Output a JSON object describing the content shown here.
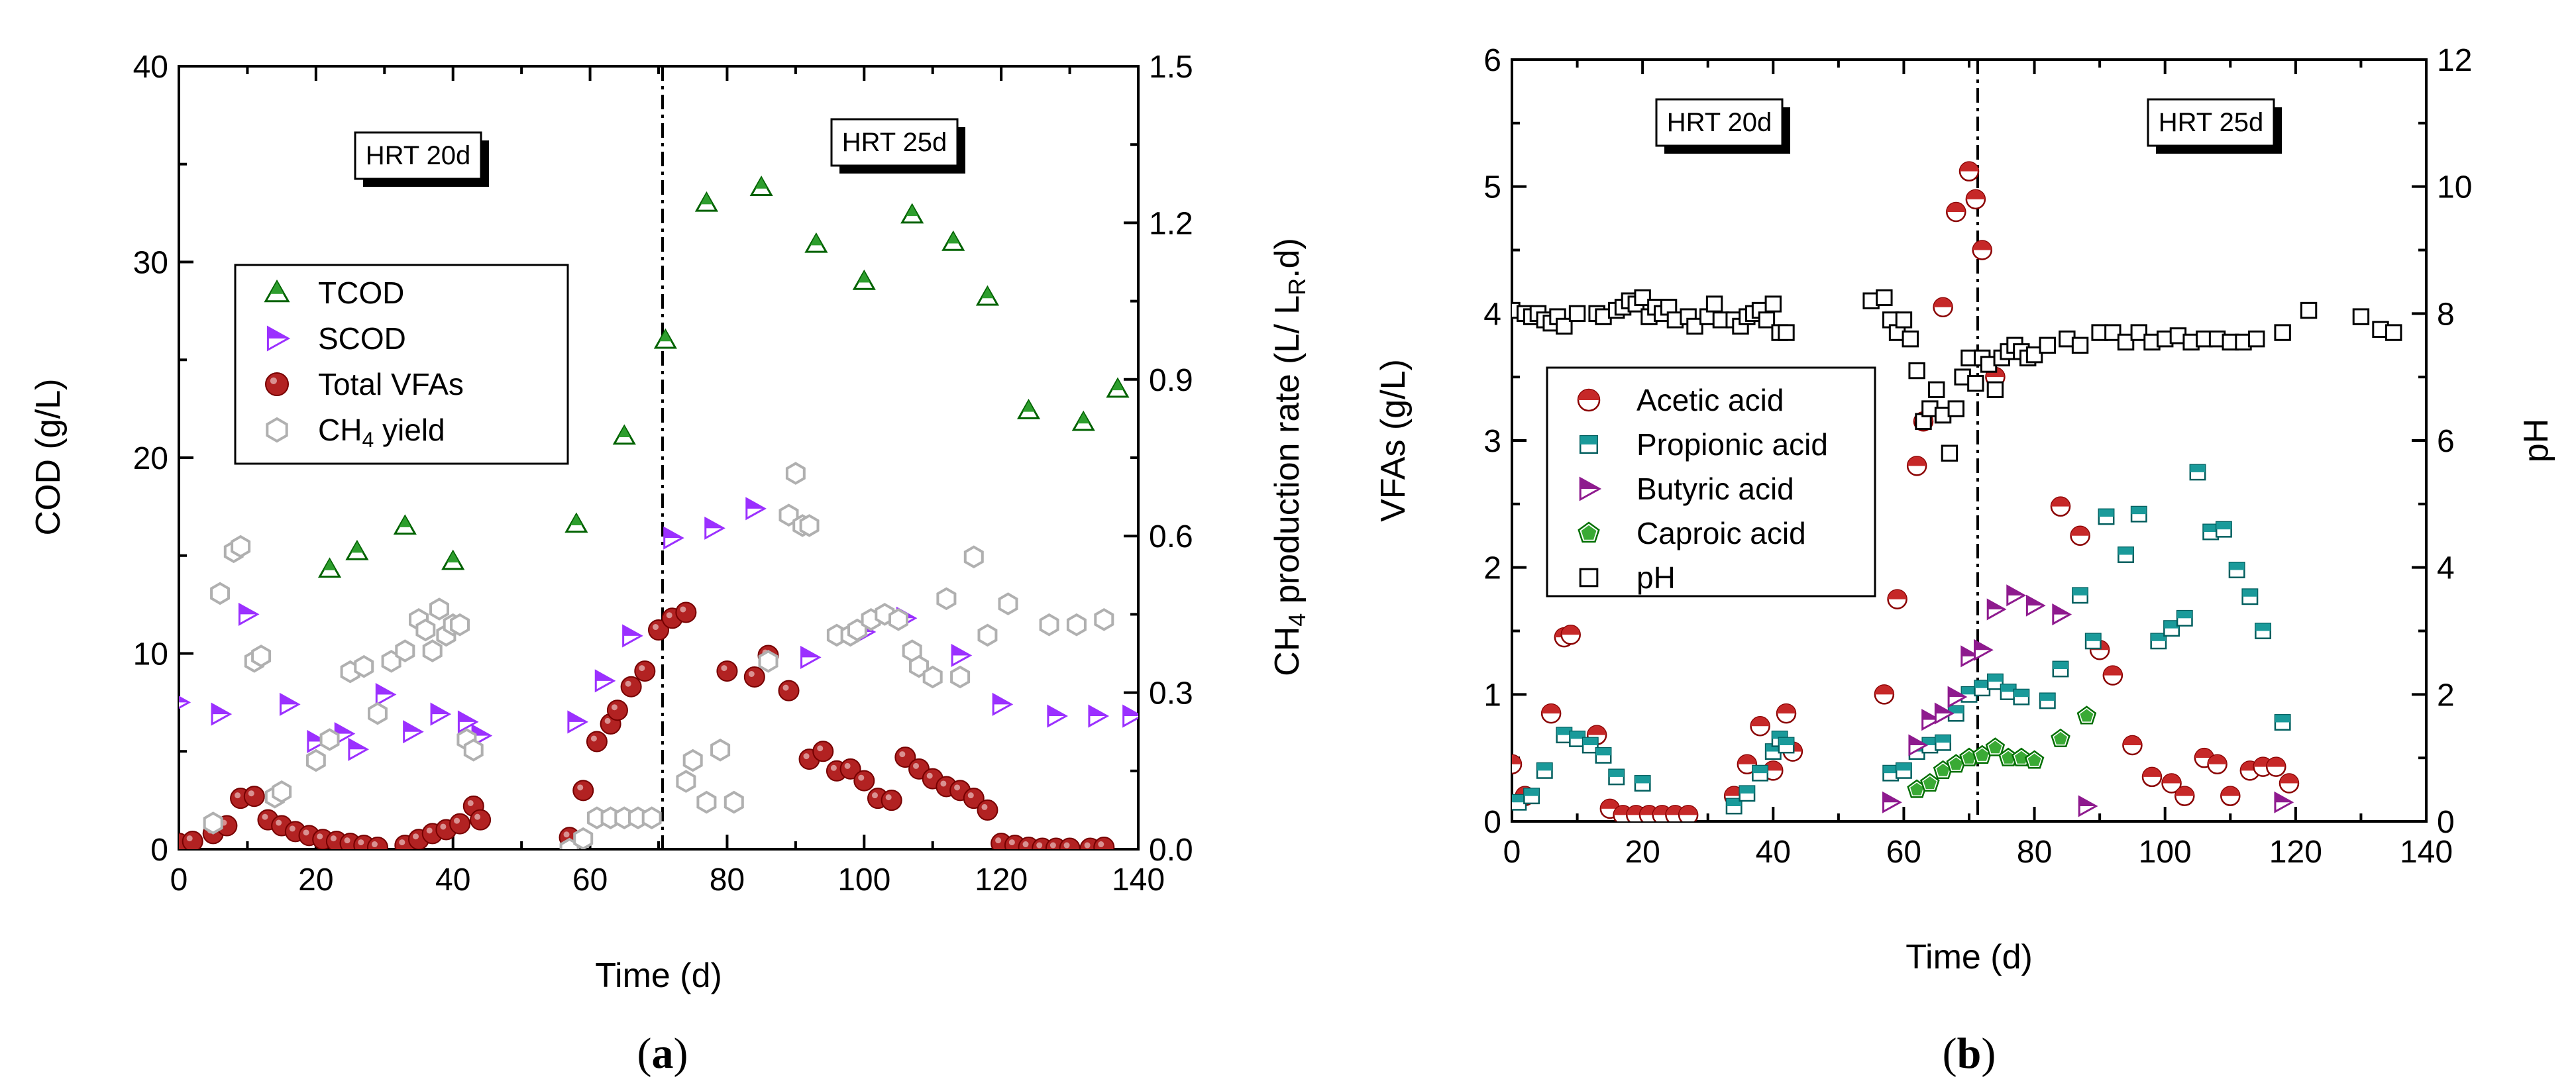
{
  "panel_a": {
    "label": "(a)",
    "xlabel": "Time (d)",
    "ylabel_left": "COD (g/L)",
    "ylabel_right": "CH4 production rate (L/ L R .d)",
    "xticks": [
      "0",
      "20",
      "40",
      "60",
      "80",
      "100",
      "120",
      "140"
    ],
    "yticks_left": [
      "0",
      "10",
      "20",
      "30",
      "40"
    ],
    "yticks_right": [
      "0.0",
      "0.3",
      "0.6",
      "0.9",
      "1.2",
      "1.5"
    ],
    "hrt_left": "HRT 20d",
    "hrt_right": "HRT 25d"
  },
  "panel_b": {
    "label": "(b)",
    "xlabel": "Time (d)",
    "ylabel_left": "VFAs (g/L)",
    "ylabel_right": "pH",
    "xticks": [
      "0",
      "20",
      "40",
      "60",
      "80",
      "100",
      "120",
      "140"
    ],
    "yticks_left": [
      "0",
      "1",
      "2",
      "3",
      "4",
      "5",
      "6"
    ],
    "yticks_right": [
      "0",
      "2",
      "4",
      "6",
      "8",
      "10",
      "12"
    ],
    "hrt_left": "HRT 20d",
    "hrt_right": "HRT 25d"
  },
  "chart_data": [
    {
      "type": "scatter",
      "panel": "a",
      "xlabel": "Time (d)",
      "ylabel": "COD (g/L)",
      "y2label": "CH4 production rate (L/ LR.d)",
      "xlim": [
        0,
        140
      ],
      "ylim": [
        0,
        40
      ],
      "y2lim": [
        0,
        1.5
      ],
      "vline_x": 71,
      "annotations": [
        "HRT 20d",
        "HRT 25d"
      ],
      "legend_position": "upper-left",
      "series": [
        {
          "name": "TCOD",
          "axis": "left",
          "marker": "triangle",
          "color": "#2e9e2e",
          "x": [
            22,
            26,
            33,
            40,
            58,
            65,
            71,
            77,
            85,
            93,
            100,
            107,
            113,
            118,
            124,
            132,
            137
          ],
          "y": [
            14.3,
            15.2,
            16.5,
            14.7,
            16.6,
            21.1,
            26.0,
            33.0,
            33.8,
            30.9,
            29.0,
            32.4,
            31.0,
            28.2,
            22.4,
            21.8,
            23.5
          ]
        },
        {
          "name": "SCOD",
          "axis": "left",
          "marker": "right-triangle",
          "color": "#9b30ff",
          "x": [
            0,
            6,
            10,
            16,
            20,
            24,
            26,
            30,
            34,
            38,
            42,
            44,
            58,
            62,
            66,
            72,
            78,
            84,
            92,
            100,
            106,
            114,
            120,
            128,
            134,
            139
          ],
          "y": [
            7.5,
            6.9,
            12.0,
            7.4,
            5.5,
            5.9,
            5.1,
            7.9,
            6.0,
            6.9,
            6.5,
            5.8,
            6.5,
            8.6,
            10.9,
            15.9,
            16.4,
            17.4,
            9.8,
            11.1,
            11.8,
            9.9,
            7.4,
            6.8,
            6.8,
            6.8
          ]
        },
        {
          "name": "Total VFAs",
          "axis": "left",
          "marker": "circle",
          "color": "#b22222",
          "x": [
            0,
            2,
            5,
            7,
            9,
            11,
            13,
            15,
            17,
            19,
            21,
            23,
            25,
            27,
            29,
            33,
            35,
            37,
            39,
            41,
            43,
            44,
            57,
            59,
            61,
            63,
            64,
            66,
            68,
            70,
            72,
            74,
            80,
            84,
            86,
            89,
            92,
            94,
            96,
            98,
            100,
            102,
            104,
            106,
            108,
            110,
            112,
            114,
            116,
            118,
            120,
            122,
            124,
            126,
            128,
            130,
            133,
            135
          ],
          "y": [
            0.3,
            0.4,
            0.8,
            1.2,
            2.6,
            2.7,
            1.5,
            1.2,
            0.9,
            0.7,
            0.5,
            0.4,
            0.3,
            0.2,
            0.1,
            0.2,
            0.5,
            0.8,
            1.0,
            1.3,
            2.2,
            1.5,
            0.6,
            3.0,
            5.5,
            6.4,
            7.1,
            8.3,
            9.1,
            11.2,
            11.8,
            12.1,
            9.1,
            8.8,
            9.9,
            8.1,
            4.6,
            5.0,
            4.0,
            4.1,
            3.5,
            2.6,
            2.5,
            4.7,
            4.1,
            3.6,
            3.2,
            3.0,
            2.6,
            2.0,
            0.3,
            0.2,
            0.1,
            0.05,
            0.05,
            0.05,
            0.05,
            0.1
          ]
        },
        {
          "name": "CH4 yield",
          "axis": "right",
          "marker": "hexagon",
          "color": "#b0b0b0",
          "x": [
            5,
            6,
            8,
            9,
            11,
            12,
            14,
            15,
            20,
            22,
            25,
            27,
            29,
            31,
            33,
            35,
            36,
            37,
            38,
            39,
            40,
            41,
            42,
            43,
            57,
            59,
            61,
            63,
            65,
            67,
            69,
            74,
            75,
            77,
            79,
            81,
            86,
            89,
            90,
            91,
            92,
            96,
            98,
            99,
            101,
            103,
            105,
            107,
            108,
            110,
            112,
            114,
            116,
            118,
            121,
            127,
            131,
            135
          ],
          "y": [
            0.05,
            0.49,
            0.57,
            0.58,
            0.36,
            0.37,
            0.1,
            0.11,
            0.17,
            0.21,
            0.34,
            0.35,
            0.26,
            0.36,
            0.38,
            0.44,
            0.42,
            0.38,
            0.46,
            0.41,
            0.43,
            0.43,
            0.21,
            0.19,
            0.0,
            0.02,
            0.06,
            0.06,
            0.06,
            0.06,
            0.06,
            0.13,
            0.17,
            0.09,
            0.19,
            0.09,
            0.36,
            0.64,
            0.72,
            0.62,
            0.62,
            0.41,
            0.41,
            0.42,
            0.44,
            0.45,
            0.44,
            0.38,
            0.35,
            0.33,
            0.48,
            0.33,
            0.56,
            0.41,
            0.47,
            0.43,
            0.43,
            0.44
          ]
        }
      ]
    },
    {
      "type": "scatter",
      "panel": "b",
      "xlabel": "Time (d)",
      "ylabel": "VFAs (g/L)",
      "y2label": "pH",
      "xlim": [
        0,
        140
      ],
      "ylim": [
        0,
        6
      ],
      "y2lim": [
        0,
        12
      ],
      "vline_x": 71,
      "annotations": [
        "HRT 20d",
        "HRT 25d"
      ],
      "legend_position": "middle-left",
      "series": [
        {
          "name": "Acetic acid",
          "axis": "left",
          "marker": "half-circle",
          "color": "#c62828",
          "x": [
            0,
            2,
            6,
            8,
            9,
            13,
            15,
            17,
            19,
            21,
            23,
            25,
            27,
            34,
            36,
            38,
            40,
            42,
            43,
            57,
            59,
            62,
            63,
            66,
            68,
            70,
            71,
            72,
            74,
            84,
            87,
            90,
            92,
            95,
            98,
            101,
            103,
            106,
            108,
            110,
            113,
            115,
            117,
            119
          ],
          "y": [
            0.45,
            0.2,
            0.85,
            1.45,
            1.47,
            0.68,
            0.1,
            0.05,
            0.05,
            0.05,
            0.05,
            0.05,
            0.05,
            0.2,
            0.45,
            0.75,
            0.4,
            0.85,
            0.55,
            1.0,
            1.75,
            2.8,
            3.15,
            4.05,
            4.8,
            5.12,
            4.9,
            4.5,
            3.5,
            2.48,
            2.25,
            1.35,
            1.15,
            0.6,
            0.35,
            0.3,
            0.2,
            0.5,
            0.45,
            0.2,
            0.4,
            0.43,
            0.43,
            0.3
          ]
        },
        {
          "name": "Propionic acid",
          "axis": "left",
          "marker": "half-square",
          "color": "#1a9a9a",
          "x": [
            1,
            3,
            5,
            8,
            10,
            12,
            14,
            16,
            20,
            34,
            36,
            38,
            40,
            41,
            42,
            58,
            60,
            62,
            64,
            66,
            68,
            70,
            72,
            74,
            76,
            78,
            82,
            84,
            87,
            89,
            91,
            94,
            96,
            99,
            101,
            103,
            105,
            107,
            109,
            111,
            113,
            115,
            118
          ],
          "y": [
            0.15,
            0.2,
            0.4,
            0.68,
            0.65,
            0.6,
            0.52,
            0.35,
            0.3,
            0.12,
            0.22,
            0.38,
            0.55,
            0.65,
            0.6,
            0.38,
            0.4,
            0.55,
            0.6,
            0.62,
            0.85,
            1.0,
            1.05,
            1.1,
            1.02,
            0.98,
            0.95,
            1.2,
            1.78,
            1.42,
            2.4,
            2.1,
            2.42,
            1.42,
            1.52,
            1.6,
            2.75,
            2.28,
            2.3,
            1.98,
            1.77,
            1.5,
            0.78
          ]
        },
        {
          "name": "Butyric acid",
          "axis": "left",
          "marker": "right-triangle",
          "color": "#8e1a8e",
          "x": [
            58,
            62,
            64,
            66,
            68,
            70,
            72,
            74,
            77,
            80,
            84,
            88,
            118
          ],
          "y": [
            0.15,
            0.6,
            0.8,
            0.85,
            0.98,
            1.3,
            1.35,
            1.67,
            1.78,
            1.7,
            1.63,
            0.12,
            0.15
          ]
        },
        {
          "name": "Caproic acid",
          "axis": "left",
          "marker": "pentagon",
          "color": "#3aaa35",
          "x": [
            62,
            64,
            66,
            68,
            70,
            72,
            74,
            76,
            78,
            80,
            84,
            88
          ],
          "y": [
            0.25,
            0.3,
            0.4,
            0.45,
            0.5,
            0.52,
            0.58,
            0.5,
            0.5,
            0.48,
            0.65,
            0.83
          ]
        },
        {
          "name": "pH",
          "axis": "right",
          "marker": "square",
          "color": "#000000",
          "x": [
            0,
            2,
            3,
            4,
            5,
            6,
            7,
            8,
            10,
            13,
            14,
            16,
            17,
            18,
            19,
            20,
            21,
            22,
            23,
            24,
            25,
            27,
            28,
            30,
            31,
            32,
            34,
            35,
            36,
            37,
            38,
            39,
            40,
            41,
            42,
            55,
            57,
            58,
            59,
            60,
            61,
            62,
            63,
            64,
            65,
            66,
            67,
            68,
            69,
            70,
            71,
            72,
            73,
            74,
            75,
            76,
            77,
            78,
            79,
            80,
            82,
            85,
            87,
            90,
            92,
            94,
            96,
            98,
            100,
            102,
            104,
            106,
            108,
            110,
            112,
            114,
            118,
            122,
            130,
            133,
            135
          ],
          "y": [
            8.05,
            8.0,
            7.95,
            8.0,
            7.9,
            7.85,
            7.95,
            7.8,
            8.0,
            8.0,
            7.95,
            8.05,
            8.1,
            8.2,
            8.15,
            8.25,
            7.95,
            8.1,
            8.0,
            8.1,
            7.9,
            7.95,
            7.8,
            7.95,
            8.15,
            7.9,
            7.9,
            7.8,
            7.95,
            8.0,
            8.05,
            7.9,
            8.15,
            7.7,
            7.7,
            8.2,
            8.25,
            7.9,
            7.7,
            7.9,
            7.6,
            7.1,
            6.3,
            6.5,
            6.8,
            6.4,
            5.8,
            6.5,
            7.0,
            7.3,
            6.9,
            7.3,
            7.2,
            6.8,
            7.3,
            7.4,
            7.5,
            7.4,
            7.3,
            7.35,
            7.5,
            7.6,
            7.5,
            7.7,
            7.7,
            7.55,
            7.7,
            7.55,
            7.6,
            7.65,
            7.55,
            7.6,
            7.6,
            7.55,
            7.55,
            7.6,
            7.7,
            8.05,
            7.95,
            7.75,
            7.7
          ]
        }
      ]
    }
  ]
}
